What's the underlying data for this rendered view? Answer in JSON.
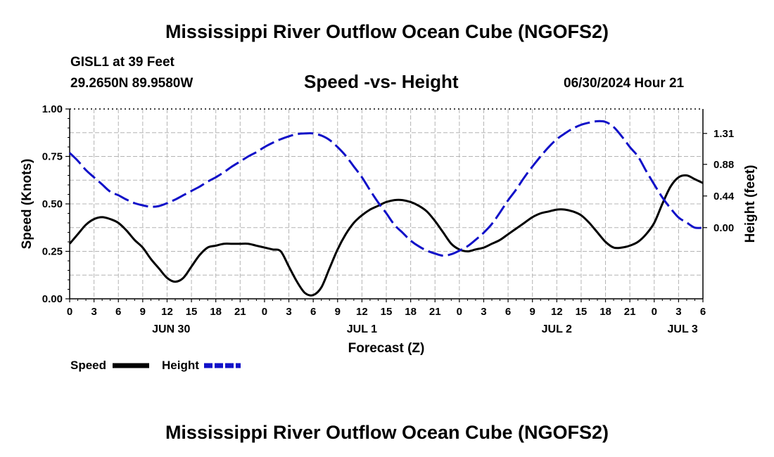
{
  "header": {
    "title": "Mississippi River Outflow Ocean Cube (NGOFS2)",
    "station": "GISL1 at 39 Feet",
    "coords": "29.2650N  89.9580W",
    "subtitle": "Speed -vs- Height",
    "timestamp": "06/30/2024 Hour 21"
  },
  "footer": {
    "title": "Mississippi River Outflow Ocean Cube (NGOFS2)"
  },
  "legend": [
    {
      "label": "Speed",
      "color": "#000000",
      "dashed": false
    },
    {
      "label": "Height",
      "color": "#1010c8",
      "dashed": true
    }
  ],
  "chart_data": {
    "type": "line",
    "title": "Speed -vs- Height",
    "xlabel": "Forecast (Z)",
    "ylabel": "Speed (Knots)",
    "y2label": "Height (feet)",
    "xlim": [
      0,
      78
    ],
    "ylim": [
      0,
      1.0
    ],
    "y2lim": [
      -0.99,
      1.65
    ],
    "yticks": [
      "0.00",
      "0.25",
      "0.50",
      "0.75",
      "1.00"
    ],
    "y2ticks": [
      "0.00",
      "0.44",
      "0.88",
      "1.31"
    ],
    "y2tick_values": [
      0.0,
      0.44,
      0.88,
      1.31
    ],
    "xtick_labels": [
      "0",
      "3",
      "6",
      "9",
      "12",
      "15",
      "18",
      "21",
      "0",
      "3",
      "6",
      "9",
      "12",
      "15",
      "18",
      "21",
      "0",
      "3",
      "6",
      "9",
      "12",
      "15",
      "18",
      "21",
      "0",
      "3",
      "6"
    ],
    "day_labels": [
      {
        "label": "JUN 30",
        "x": 12.5
      },
      {
        "label": "JUL 1",
        "x": 36
      },
      {
        "label": "JUL 2",
        "x": 60
      },
      {
        "label": "JUL 3",
        "x": 75.5
      }
    ],
    "grid": true,
    "series": [
      {
        "name": "Speed",
        "axis": "left",
        "color": "#000000",
        "x": [
          0,
          1,
          2,
          3,
          4,
          5,
          6,
          7,
          8,
          9,
          10,
          11,
          12,
          13,
          14,
          15,
          16,
          17,
          18,
          19,
          20,
          21,
          22,
          23,
          24,
          25,
          26,
          27,
          28,
          29,
          30,
          31,
          32,
          33,
          34,
          35,
          36,
          37,
          38,
          39,
          40,
          41,
          42,
          43,
          44,
          45,
          46,
          47,
          48,
          49,
          50,
          51,
          52,
          53,
          54,
          55,
          56,
          57,
          58,
          59,
          60,
          61,
          62,
          63,
          64,
          65,
          66,
          67,
          68,
          69,
          70,
          71,
          72,
          73,
          74,
          75,
          76,
          77,
          78
        ],
        "values": [
          0.29,
          0.34,
          0.39,
          0.42,
          0.43,
          0.42,
          0.4,
          0.36,
          0.31,
          0.27,
          0.21,
          0.16,
          0.11,
          0.09,
          0.11,
          0.17,
          0.23,
          0.27,
          0.28,
          0.29,
          0.29,
          0.29,
          0.29,
          0.28,
          0.27,
          0.26,
          0.25,
          0.17,
          0.09,
          0.03,
          0.02,
          0.06,
          0.16,
          0.26,
          0.34,
          0.4,
          0.44,
          0.47,
          0.49,
          0.51,
          0.52,
          0.52,
          0.51,
          0.49,
          0.46,
          0.41,
          0.35,
          0.29,
          0.26,
          0.25,
          0.26,
          0.27,
          0.29,
          0.31,
          0.34,
          0.37,
          0.4,
          0.43,
          0.45,
          0.46,
          0.47,
          0.47,
          0.46,
          0.44,
          0.4,
          0.35,
          0.3,
          0.27,
          0.27,
          0.28,
          0.3,
          0.34,
          0.4,
          0.5,
          0.59,
          0.64,
          0.65,
          0.63,
          0.61
        ]
      },
      {
        "name": "Height",
        "axis": "right",
        "color": "#1010c8",
        "x": [
          0,
          1,
          2,
          3,
          4,
          5,
          6,
          7,
          8,
          9,
          10,
          11,
          12,
          13,
          14,
          15,
          16,
          17,
          18,
          19,
          20,
          21,
          22,
          23,
          24,
          25,
          26,
          27,
          28,
          29,
          30,
          31,
          32,
          33,
          34,
          35,
          36,
          37,
          38,
          39,
          40,
          41,
          42,
          43,
          44,
          45,
          46,
          47,
          48,
          49,
          50,
          51,
          52,
          53,
          54,
          55,
          56,
          57,
          58,
          59,
          60,
          61,
          62,
          63,
          64,
          65,
          66,
          67,
          68,
          69,
          70,
          71,
          72,
          73,
          74,
          75,
          76,
          77,
          78
        ],
        "values": [
          1.04,
          0.93,
          0.8,
          0.7,
          0.6,
          0.5,
          0.45,
          0.39,
          0.34,
          0.31,
          0.29,
          0.3,
          0.34,
          0.39,
          0.45,
          0.51,
          0.57,
          0.64,
          0.7,
          0.77,
          0.85,
          0.92,
          0.99,
          1.05,
          1.12,
          1.18,
          1.23,
          1.27,
          1.3,
          1.31,
          1.31,
          1.28,
          1.22,
          1.12,
          1.0,
          0.85,
          0.7,
          0.52,
          0.35,
          0.2,
          0.04,
          -0.07,
          -0.18,
          -0.26,
          -0.32,
          -0.36,
          -0.39,
          -0.37,
          -0.32,
          -0.26,
          -0.17,
          -0.07,
          0.05,
          0.21,
          0.38,
          0.53,
          0.7,
          0.85,
          0.99,
          1.12,
          1.23,
          1.31,
          1.38,
          1.43,
          1.46,
          1.48,
          1.47,
          1.4,
          1.27,
          1.12,
          0.99,
          0.79,
          0.6,
          0.42,
          0.27,
          0.14,
          0.07,
          0.0,
          0.0
        ]
      }
    ]
  }
}
